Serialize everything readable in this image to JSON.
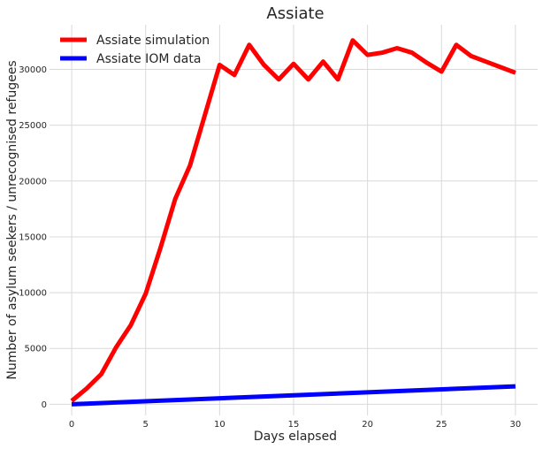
{
  "chart_data": {
    "type": "line",
    "title": "Assiate",
    "xlabel": "Days elapsed",
    "ylabel": "Number of asylum seekers / unrecognised refugees",
    "xlim": [
      -1.5,
      31.5
    ],
    "ylim": [
      -1000,
      34000
    ],
    "xticks": [
      0,
      5,
      10,
      15,
      20,
      25,
      30
    ],
    "yticks": [
      0,
      5000,
      10000,
      15000,
      20000,
      25000,
      30000
    ],
    "grid": true,
    "legend_position": "top-left",
    "series": [
      {
        "name": "Assiate simulation",
        "color": "#ff0000",
        "x": [
          0,
          1,
          2,
          3,
          4,
          5,
          6,
          7,
          8,
          9,
          10,
          11,
          12,
          13,
          14,
          15,
          16,
          17,
          18,
          19,
          20,
          21,
          22,
          23,
          24,
          25,
          26,
          27,
          28,
          29,
          30
        ],
        "values": [
          300,
          1400,
          2700,
          5100,
          7100,
          9900,
          14000,
          18400,
          21400,
          25900,
          30400,
          29500,
          32200,
          30400,
          29100,
          30500,
          29100,
          30700,
          29100,
          32600,
          31300,
          31500,
          31900,
          31500,
          30600,
          29800,
          32200,
          31200,
          30700,
          30200,
          29700
        ]
      },
      {
        "name": "Assiate IOM data",
        "color": "#0000ff",
        "x": [
          0,
          30
        ],
        "values": [
          0,
          1600
        ]
      }
    ]
  }
}
